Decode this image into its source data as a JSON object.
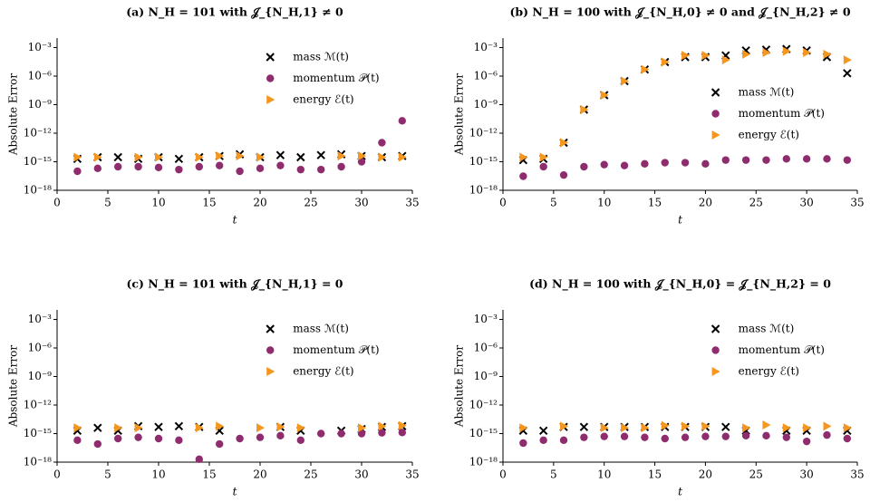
{
  "chart_data": [
    {
      "type": "scatter",
      "title": "(a) N_H = 101 with 𝒥_{N_H,1} ≠ 0",
      "xlabel": "t",
      "ylabel": "Absolute Error",
      "yscale": "log",
      "legend_loc": "upper right",
      "x": [
        2,
        4,
        6,
        8,
        10,
        12,
        14,
        16,
        18,
        20,
        22,
        24,
        26,
        28,
        30,
        32,
        34
      ],
      "xlim": [
        0,
        35
      ],
      "xticks": [
        0,
        5,
        10,
        15,
        20,
        25,
        30,
        35
      ],
      "ylim": [
        1e-18,
        0.01
      ],
      "yticks": [
        {
          "value": 1e-18,
          "label": "10⁻¹⁸"
        },
        {
          "value": 1e-15,
          "label": "10⁻¹⁵"
        },
        {
          "value": 1e-12,
          "label": "10⁻¹²"
        },
        {
          "value": 1e-09,
          "label": "10⁻⁹"
        },
        {
          "value": 1e-06,
          "label": "10⁻⁶"
        },
        {
          "value": 0.001,
          "label": "10⁻³"
        }
      ],
      "series": [
        {
          "name": "mass ℳ(t)",
          "color": "#000000",
          "marker": "x",
          "values": [
            2e-15,
            3e-15,
            3e-15,
            2e-15,
            3e-15,
            2e-15,
            3e-15,
            4e-15,
            6e-15,
            3e-15,
            5e-15,
            3e-15,
            5e-15,
            6e-15,
            4e-15,
            3e-15,
            4e-15
          ]
        },
        {
          "name": "momentum 𝒫(t)",
          "color": "#8e2c6e",
          "marker": "o",
          "values": [
            1e-16,
            2e-16,
            3e-16,
            3e-16,
            2.5e-16,
            1.5e-16,
            3e-16,
            4e-16,
            1e-16,
            2e-16,
            4e-16,
            1.5e-16,
            1.5e-16,
            3e-16,
            1e-15,
            1e-13,
            2e-11
          ]
        },
        {
          "name": "energy ℰ(t)",
          "color": "#f5961e",
          "marker": ">",
          "values": [
            3e-15,
            3e-15,
            null,
            3e-15,
            3e-15,
            null,
            3e-15,
            4e-15,
            4e-15,
            3e-15,
            null,
            null,
            null,
            4e-15,
            4e-15,
            3e-15,
            3e-15
          ]
        }
      ]
    },
    {
      "type": "scatter",
      "title": "(b) N_H = 100 with 𝒥_{N_H,0} ≠ 0 and 𝒥_{N_H,2} ≠ 0",
      "xlabel": "t",
      "ylabel": "Absolute Error",
      "yscale": "log",
      "legend_loc": "center right",
      "x": [
        2,
        4,
        6,
        8,
        10,
        12,
        14,
        16,
        18,
        20,
        22,
        24,
        26,
        28,
        30,
        32,
        34
      ],
      "xlim": [
        0,
        35
      ],
      "xticks": [
        0,
        5,
        10,
        15,
        20,
        25,
        30,
        35
      ],
      "ylim": [
        1e-18,
        0.01
      ],
      "yticks": [
        {
          "value": 1e-18,
          "label": "10⁻¹⁸"
        },
        {
          "value": 1e-15,
          "label": "10⁻¹⁵"
        },
        {
          "value": 1e-12,
          "label": "10⁻¹²"
        },
        {
          "value": 1e-09,
          "label": "10⁻⁹"
        },
        {
          "value": 1e-06,
          "label": "10⁻⁶"
        },
        {
          "value": 0.001,
          "label": "10⁻³"
        }
      ],
      "series": [
        {
          "name": "mass ℳ(t)",
          "color": "#000000",
          "marker": "x",
          "values": [
            1.5e-15,
            2e-15,
            1e-13,
            3e-10,
            1e-08,
            3e-07,
            5e-06,
            3e-05,
            0.0001,
            0.0001,
            0.00015,
            0.0005,
            0.0006,
            0.0007,
            0.0005,
            0.0001,
            2e-06
          ]
        },
        {
          "name": "momentum 𝒫(t)",
          "color": "#8e2c6e",
          "marker": "o",
          "values": [
            3e-17,
            3e-16,
            4e-17,
            3e-16,
            5e-16,
            4e-16,
            6e-16,
            8e-16,
            8e-16,
            6e-16,
            1.5e-15,
            1.5e-15,
            1.5e-15,
            2e-15,
            2e-15,
            2e-15,
            1.5e-15
          ]
        },
        {
          "name": "energy ℰ(t)",
          "color": "#f5961e",
          "marker": ">",
          "values": [
            3e-15,
            3e-15,
            1e-13,
            3e-10,
            1e-08,
            3e-07,
            5e-06,
            3e-05,
            0.00015,
            0.00015,
            5e-05,
            0.0002,
            0.0003,
            0.0004,
            0.0003,
            0.0002,
            5e-05
          ]
        }
      ]
    },
    {
      "type": "scatter",
      "title": "(c) N_H = 101 with 𝒥_{N_H,1} = 0",
      "xlabel": "t",
      "ylabel": "Absolute Error",
      "yscale": "log",
      "legend_loc": "upper right",
      "x": [
        2,
        4,
        6,
        8,
        10,
        12,
        14,
        16,
        18,
        20,
        22,
        24,
        26,
        28,
        30,
        32,
        34
      ],
      "xlim": [
        0,
        35
      ],
      "xticks": [
        0,
        5,
        10,
        15,
        20,
        25,
        30,
        35
      ],
      "ylim": [
        1e-18,
        0.01
      ],
      "yticks": [
        {
          "value": 1e-18,
          "label": "10⁻¹⁸"
        },
        {
          "value": 1e-15,
          "label": "10⁻¹⁵"
        },
        {
          "value": 1e-12,
          "label": "10⁻¹²"
        },
        {
          "value": 1e-09,
          "label": "10⁻⁹"
        },
        {
          "value": 1e-06,
          "label": "10⁻⁶"
        },
        {
          "value": 0.001,
          "label": "10⁻³"
        }
      ],
      "series": [
        {
          "name": "mass ℳ(t)",
          "color": "#000000",
          "marker": "x",
          "values": [
            2e-15,
            4e-15,
            2e-15,
            6e-15,
            5e-15,
            6e-15,
            5e-15,
            2e-15,
            null,
            null,
            5e-15,
            2e-15,
            null,
            2e-15,
            3e-15,
            5e-15,
            6e-15
          ]
        },
        {
          "name": "momentum 𝒫(t)",
          "color": "#8e2c6e",
          "marker": "o",
          "values": [
            2e-16,
            8e-17,
            3e-16,
            4e-16,
            3e-16,
            2e-16,
            2e-18,
            8e-17,
            3e-16,
            4e-16,
            6e-16,
            2e-16,
            1e-15,
            1e-15,
            1e-15,
            1.2e-15,
            1.3e-15
          ]
        },
        {
          "name": "energy ℰ(t)",
          "color": "#f5961e",
          "marker": ">",
          "values": [
            4e-15,
            null,
            4e-15,
            4e-15,
            null,
            null,
            4e-15,
            6e-15,
            null,
            4e-15,
            5e-15,
            4e-15,
            null,
            null,
            4e-15,
            6e-15,
            7e-15
          ]
        }
      ]
    },
    {
      "type": "scatter",
      "title": "(d) N_H = 100 with 𝒥_{N_H,0} = 𝒥_{N_H,2} = 0",
      "xlabel": "t",
      "ylabel": "Absolute Error",
      "yscale": "log",
      "legend_loc": "upper right",
      "x": [
        2,
        4,
        6,
        8,
        10,
        12,
        14,
        16,
        18,
        20,
        22,
        24,
        26,
        28,
        30,
        32,
        34
      ],
      "xlim": [
        0,
        35
      ],
      "xticks": [
        0,
        5,
        10,
        15,
        20,
        25,
        30,
        35
      ],
      "ylim": [
        1e-18,
        0.01
      ],
      "yticks": [
        {
          "value": 1e-18,
          "label": "10⁻¹⁸"
        },
        {
          "value": 1e-15,
          "label": "10⁻¹⁵"
        },
        {
          "value": 1e-12,
          "label": "10⁻¹²"
        },
        {
          "value": 1e-09,
          "label": "10⁻⁹"
        },
        {
          "value": 1e-06,
          "label": "10⁻⁶"
        },
        {
          "value": 0.001,
          "label": "10⁻³"
        }
      ],
      "series": [
        {
          "name": "mass ℳ(t)",
          "color": "#000000",
          "marker": "x",
          "values": [
            2e-15,
            2e-15,
            5e-15,
            5e-15,
            5e-15,
            5e-15,
            5e-15,
            5e-15,
            5e-15,
            5e-15,
            5e-15,
            2e-15,
            null,
            2e-15,
            2e-15,
            null,
            2e-15
          ]
        },
        {
          "name": "momentum 𝒫(t)",
          "color": "#8e2c6e",
          "marker": "o",
          "values": [
            1e-16,
            2e-16,
            2e-16,
            4e-16,
            5e-16,
            5e-16,
            4e-16,
            3e-16,
            4e-16,
            5e-16,
            5e-16,
            6e-16,
            6e-16,
            4e-16,
            1.5e-16,
            7e-16,
            3e-16
          ]
        },
        {
          "name": "energy ℰ(t)",
          "color": "#f5961e",
          "marker": ">",
          "values": [
            4e-15,
            null,
            6e-15,
            null,
            4e-15,
            4e-15,
            4e-15,
            7e-15,
            6e-15,
            6e-15,
            null,
            4e-15,
            8e-15,
            4e-15,
            4e-15,
            6e-15,
            4e-15
          ]
        }
      ]
    }
  ]
}
